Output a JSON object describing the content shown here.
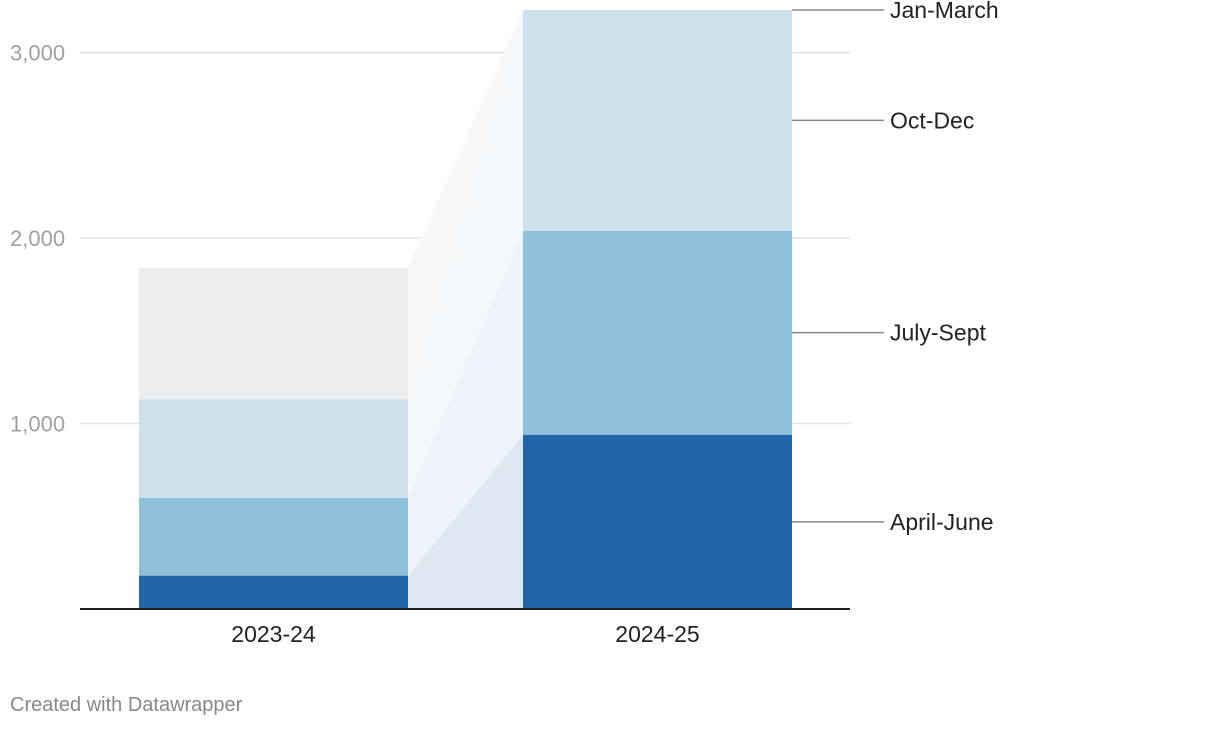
{
  "chart_data": {
    "type": "bar",
    "stacked": true,
    "categories": [
      "2023-24",
      "2024-25"
    ],
    "series": [
      {
        "name": "April-June",
        "values": [
          180,
          940
        ],
        "color": "#2166a8"
      },
      {
        "name": "July-Sept",
        "values": [
          420,
          1100
        ],
        "color": "#8fc1da"
      },
      {
        "name": "Oct-Dec",
        "values": [
          530,
          1190
        ],
        "color": "#cde1ec"
      },
      {
        "name": "Jan-March",
        "values": [
          710,
          0
        ],
        "color": "#ededed"
      }
    ],
    "yticks": [
      1000,
      2000,
      3000
    ],
    "ytick_labels": [
      "1,000",
      "2,000",
      "3,000"
    ],
    "ylim": [
      0,
      3230
    ],
    "grid": true,
    "legend": "right, labels beside last bar"
  },
  "footer": {
    "credit": "Created with Datawrapper"
  }
}
